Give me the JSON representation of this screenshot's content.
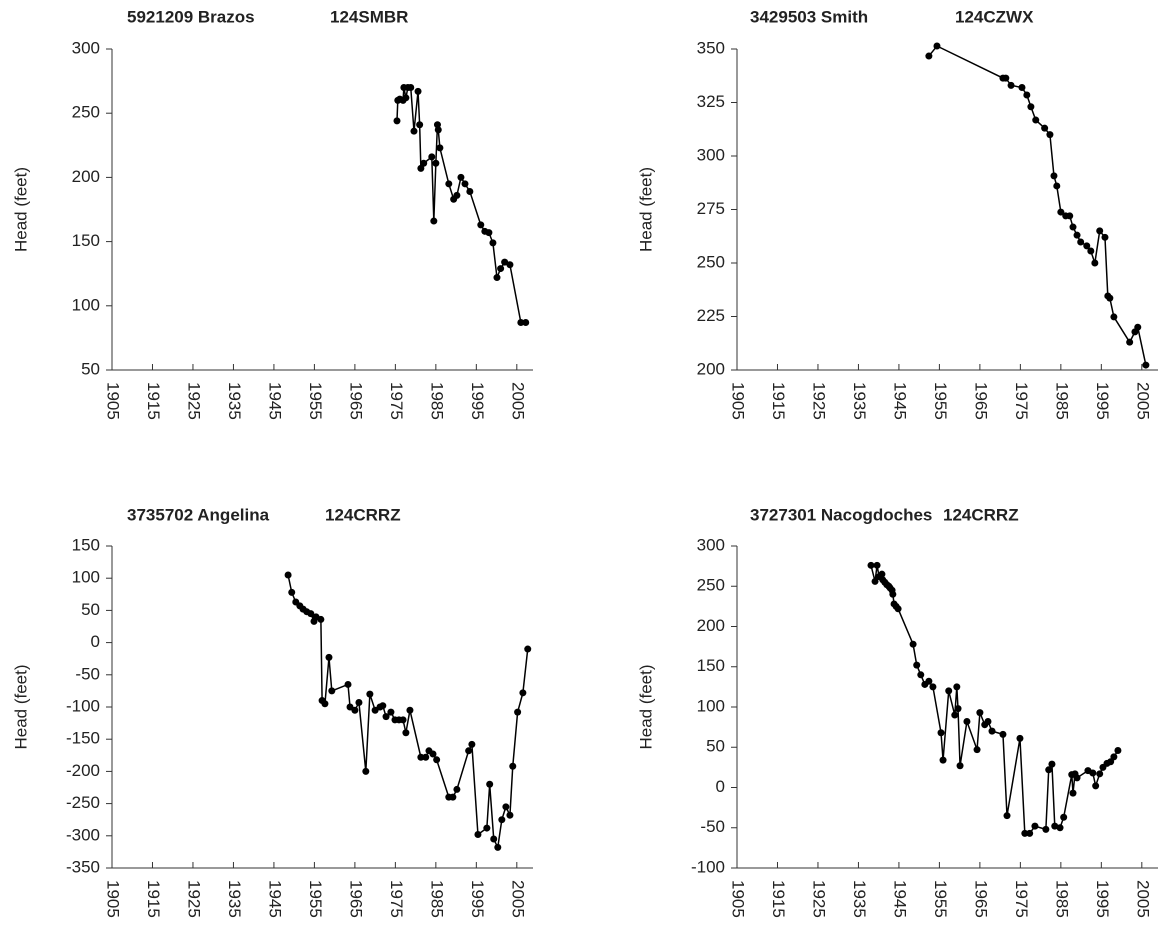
{
  "chart_data": [
    {
      "type": "line",
      "title": "5921209 Brazos",
      "subtitle": "124SMBR",
      "y_label": "Head (feet)",
      "color": "#000000",
      "markers": true,
      "x": [
        1975.4,
        1975.6,
        1976.1,
        1976.9,
        1977.1,
        1977.6,
        1978.1,
        1978.8,
        1979.6,
        1980.6,
        1981.0,
        1981.3,
        1982.0,
        1984.0,
        1984.5,
        1985.0,
        1985.4,
        1985.6,
        1986.0,
        1988.2,
        1989.4,
        1990.2,
        1991.2,
        1992.2,
        1993.4,
        1996.1,
        1997.1,
        1998.1,
        1999.1,
        2000.1,
        2001.0,
        2002.0,
        2003.3,
        2006.0,
        2007.2
      ],
      "values": [
        244,
        260,
        261,
        260,
        270,
        262,
        270,
        270,
        236,
        267,
        241,
        207,
        211,
        216,
        166,
        211,
        241,
        237,
        223,
        195,
        183,
        186,
        200,
        195,
        189,
        163,
        158,
        157,
        149,
        122,
        129,
        134,
        132,
        87,
        87
      ],
      "xlim": [
        1905,
        2009
      ],
      "xticks": [
        1905,
        1915,
        1925,
        1935,
        1945,
        1955,
        1965,
        1975,
        1985,
        1995,
        2005
      ],
      "ylim": [
        50,
        300
      ],
      "yticks": [
        50,
        100,
        150,
        200,
        250,
        300
      ]
    },
    {
      "type": "line",
      "title": "3429503 Smith",
      "subtitle": "124CZWX",
      "y_label": "Head (feet)",
      "color": "#000000",
      "markers": true,
      "x": [
        1952.4,
        1954.4,
        1970.7,
        1971.4,
        1972.7,
        1975.4,
        1976.6,
        1977.6,
        1978.8,
        1981.0,
        1982.3,
        1983.3,
        1984.0,
        1985.0,
        1986.2,
        1987.2,
        1988.0,
        1989.0,
        1989.9,
        1991.4,
        1992.4,
        1993.4,
        1994.6,
        1995.9,
        1996.6,
        1997.1,
        1998.1,
        2002.0,
        2003.3,
        2004.0,
        2006.0
      ],
      "values": [
        346.7,
        351.4,
        336.4,
        336.4,
        333,
        332,
        328.5,
        323,
        316.8,
        313,
        310,
        290.7,
        286,
        273.8,
        272,
        272,
        266.8,
        263,
        259.8,
        258,
        255.6,
        250,
        265,
        262,
        234.6,
        233.6,
        224.8,
        213,
        217.8,
        220,
        202.3
      ],
      "xlim": [
        1905,
        2009
      ],
      "xticks": [
        1905,
        1915,
        1925,
        1935,
        1945,
        1955,
        1965,
        1975,
        1985,
        1995,
        2005
      ],
      "ylim": [
        200,
        350
      ],
      "yticks": [
        200,
        225,
        250,
        275,
        300,
        325,
        350
      ]
    },
    {
      "type": "line",
      "title": "3735702 Angelina",
      "subtitle": "124CRRZ",
      "y_label": "Head (feet)",
      "color": "#000000",
      "markers": true,
      "x": [
        1948.5,
        1949.4,
        1950.4,
        1951.4,
        1952.2,
        1953.1,
        1954.1,
        1954.9,
        1955.4,
        1956.6,
        1956.9,
        1957.6,
        1958.6,
        1959.3,
        1963.3,
        1963.8,
        1965.0,
        1966.0,
        1967.7,
        1968.7,
        1970.0,
        1971.2,
        1971.9,
        1972.7,
        1973.9,
        1974.9,
        1975.9,
        1976.9,
        1977.6,
        1978.6,
        1981.3,
        1982.5,
        1983.3,
        1984.3,
        1985.2,
        1988.2,
        1989.2,
        1990.2,
        1993.1,
        1993.9,
        1995.4,
        1997.6,
        1998.3,
        1999.3,
        2000.3,
        2001.3,
        2002.3,
        2003.3,
        2004.0,
        2005.2,
        2006.5,
        2007.7
      ],
      "values": [
        105,
        78,
        63,
        57,
        52,
        48,
        45,
        33,
        40,
        36,
        -90,
        -95,
        -23,
        -75,
        -65,
        -100,
        -105,
        -93,
        -200,
        -80,
        -105,
        -100,
        -98,
        -115,
        -108,
        -120,
        -120,
        -120,
        -140,
        -105,
        -178,
        -178,
        -168,
        -173,
        -182,
        -240,
        -240,
        -228,
        -168,
        -158,
        -298,
        -288,
        -220,
        -305,
        -318,
        -275,
        -255,
        -268,
        -192,
        -108,
        -78,
        -10
      ],
      "xlim": [
        1905,
        2009
      ],
      "xticks": [
        1905,
        1915,
        1925,
        1935,
        1945,
        1955,
        1965,
        1975,
        1985,
        1995,
        2005
      ],
      "ylim": [
        -350,
        150
      ],
      "yticks": [
        -350,
        -300,
        -250,
        -200,
        -150,
        -100,
        -50,
        0,
        50,
        100,
        150
      ]
    },
    {
      "type": "line",
      "title": "3727301 Nacogdoches",
      "subtitle": "124CRRZ",
      "y_label": "Head (feet)",
      "color": "#000000",
      "markers": true,
      "x": [
        1938.1,
        1939.1,
        1939.6,
        1940.1,
        1940.8,
        1941.0,
        1941.5,
        1942.0,
        1942.5,
        1942.8,
        1943.3,
        1943.5,
        1943.8,
        1944.3,
        1944.8,
        1948.5,
        1949.4,
        1950.4,
        1951.4,
        1952.4,
        1953.4,
        1955.4,
        1955.9,
        1957.3,
        1958.8,
        1959.3,
        1959.6,
        1960.1,
        1961.8,
        1964.3,
        1965.0,
        1966.2,
        1967.0,
        1968.0,
        1970.7,
        1971.7,
        1974.9,
        1976.1,
        1977.3,
        1978.6,
        1981.3,
        1982.0,
        1982.8,
        1983.5,
        1984.8,
        1985.7,
        1987.7,
        1988.0,
        1988.5,
        1989.0,
        1991.7,
        1992.9,
        1993.6,
        1994.6,
        1995.4,
        1996.4,
        1997.3,
        1998.1,
        1999.1
      ],
      "values": [
        276,
        256,
        276,
        262,
        265,
        258,
        255,
        252,
        250,
        248,
        245,
        240,
        228,
        225,
        222,
        178,
        152,
        140,
        128,
        132,
        125,
        68,
        34,
        120,
        90,
        125,
        98,
        27,
        82,
        47,
        93,
        78,
        82,
        70,
        66,
        -35,
        61,
        -57,
        -57,
        -48,
        -52,
        22,
        29,
        -48,
        -50,
        -37,
        16,
        -7,
        17,
        12,
        21,
        18,
        2,
        17,
        25,
        30,
        32,
        38,
        46
      ],
      "xlim": [
        1905,
        2009
      ],
      "xticks": [
        1905,
        1915,
        1925,
        1935,
        1945,
        1955,
        1965,
        1975,
        1985,
        1995,
        2005
      ],
      "ylim": [
        -100,
        300
      ],
      "yticks": [
        -100,
        -50,
        0,
        50,
        100,
        150,
        200,
        250,
        300
      ]
    }
  ]
}
